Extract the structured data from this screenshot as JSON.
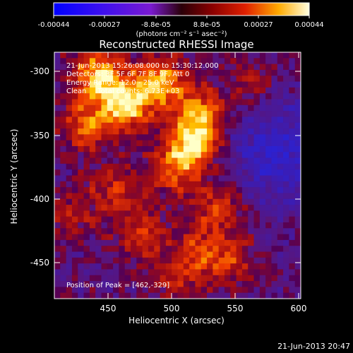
{
  "colorbar": {
    "ticks": [
      "-0.00044",
      "-0.00027",
      "-8.8e-05",
      "8.8e-05",
      "0.00027",
      "0.00044"
    ],
    "unit_label": "(photons cm⁻² s⁻¹ asec⁻²)"
  },
  "image": {
    "title": "Reconstructed RHESSI Image",
    "info": {
      "time_range": "21-Jun-2013 15:26:08.000 to 15:30:12.000",
      "detectors": "Detectors: 3F 5F 6F 7F 8F 9F, Att 0",
      "energy": "Energy Range: 12.0 - 25.0 keV",
      "clean": "Clean     Total counts: 6.73E+03"
    },
    "peak_label": "Position of Peak = [462,-329]"
  },
  "axes": {
    "xlabel": "Heliocentric X (arcsec)",
    "ylabel": "Heliocentric Y (arcsec)",
    "xticks": [
      "450",
      "500",
      "550",
      "600"
    ],
    "yticks": [
      "-300",
      "-350",
      "-400",
      "-450"
    ]
  },
  "chart_data": {
    "type": "heatmap",
    "title": "Reconstructed RHESSI Image",
    "xlabel": "Heliocentric X (arcsec)",
    "ylabel": "Heliocentric Y (arcsec)",
    "xlim": [
      406,
      600
    ],
    "ylim": [
      -481,
      -287
    ],
    "x_ticks": [
      450,
      500,
      550,
      600
    ],
    "y_ticks": [
      -300,
      -350,
      -400,
      -450
    ],
    "colorbar_range": [
      -0.00044,
      0.00044
    ],
    "peak": [
      462,
      -329
    ],
    "sources": [
      {
        "x": 462,
        "y": -329,
        "rel": 1.0
      },
      {
        "x": 440,
        "y": -305,
        "rel": 0.9
      },
      {
        "x": 490,
        "y": -310,
        "rel": 0.8
      },
      {
        "x": 515,
        "y": -360,
        "rel": 0.85
      },
      {
        "x": 520,
        "y": -335,
        "rel": 0.7
      },
      {
        "x": 430,
        "y": -345,
        "rel": 0.6
      },
      {
        "x": 500,
        "y": -380,
        "rel": 0.55
      },
      {
        "x": 535,
        "y": -410,
        "rel": 0.5
      },
      {
        "x": 455,
        "y": -395,
        "rel": 0.45
      },
      {
        "x": 475,
        "y": -430,
        "rel": 0.45
      },
      {
        "x": 520,
        "y": -445,
        "rel": 0.45
      },
      {
        "x": 545,
        "y": -450,
        "rel": 0.4
      },
      {
        "x": 420,
        "y": -415,
        "rel": 0.35
      },
      {
        "x": 500,
        "y": -465,
        "rel": 0.35
      },
      {
        "x": 560,
        "y": -310,
        "rel": 0.3
      }
    ],
    "negative_region": {
      "x": 585,
      "y": -365,
      "rel": -0.5
    }
  },
  "footer": {
    "timestamp": "21-Jun-2013 20:47"
  }
}
